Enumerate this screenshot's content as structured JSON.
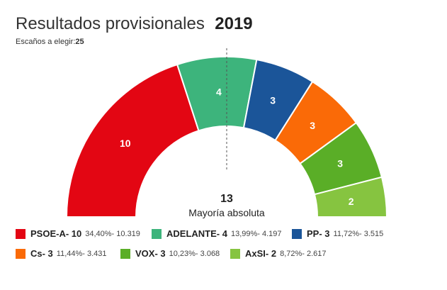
{
  "header": {
    "title": "Resultados provisionales",
    "year": "2019",
    "seats_label": "Escaños a elegir:",
    "seats_total": "25"
  },
  "majority": {
    "number": "13",
    "label": "Mayoría absoluta"
  },
  "chart_data": {
    "type": "pie",
    "subtype": "hemicycle",
    "total_seats": 25,
    "majority_line": true,
    "series": [
      {
        "name": "PSOE-A",
        "seats": 10,
        "percent": "34,40%",
        "votes": "10.319",
        "color": "#e30613"
      },
      {
        "name": "ADELANTE",
        "seats": 4,
        "percent": "13,99%",
        "votes": "4.197",
        "color": "#3db47c"
      },
      {
        "name": "PP",
        "seats": 3,
        "percent": "11,72%",
        "votes": "3.515",
        "color": "#1b5599"
      },
      {
        "name": "Cs",
        "seats": 3,
        "percent": "11,44%",
        "votes": "3.431",
        "color": "#fa6a07"
      },
      {
        "name": "VOX",
        "seats": 3,
        "percent": "10,23%",
        "votes": "3.068",
        "color": "#5aae27"
      },
      {
        "name": "AxSI",
        "seats": 2,
        "percent": "8,72%",
        "votes": "2.617",
        "color": "#86c440"
      }
    ]
  },
  "legend": [
    {
      "label": "PSOE-A- 10",
      "stats": "34,40%- 10.319",
      "color": "#e30613"
    },
    {
      "label": "ADELANTE- 4",
      "stats": "13,99%- 4.197",
      "color": "#3db47c"
    },
    {
      "label": "PP- 3",
      "stats": "11,72%- 3.515",
      "color": "#1b5599"
    },
    {
      "label": "Cs- 3",
      "stats": "11,44%- 3.431",
      "color": "#fa6a07"
    },
    {
      "label": "VOX- 3",
      "stats": "10,23%- 3.068",
      "color": "#5aae27"
    },
    {
      "label": "AxSI- 2",
      "stats": "8,72%- 2.617",
      "color": "#86c440"
    }
  ]
}
